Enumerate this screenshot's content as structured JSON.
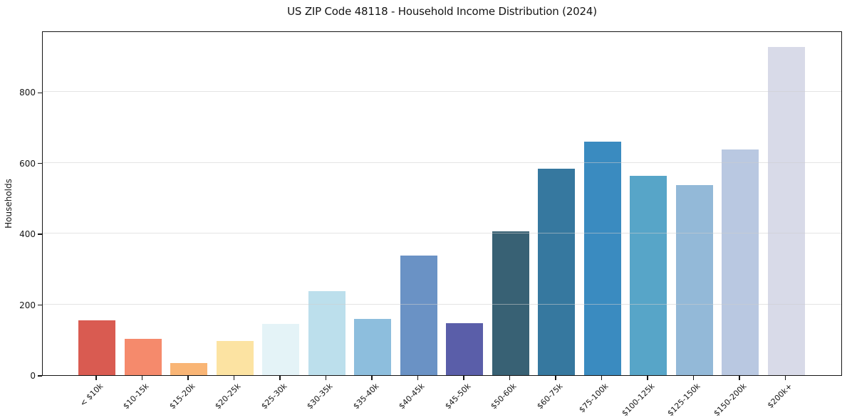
{
  "chart_data": {
    "type": "bar",
    "title": "US ZIP Code 48118 - Household Income Distribution (2024)",
    "xlabel": "",
    "ylabel": "Households",
    "categories": [
      "< $10k",
      "$10-15k",
      "$15-20k",
      "$20-25k",
      "$25-30k",
      "$30-35k",
      "$35-40k",
      "$40-45k",
      "$45-50k",
      "$50-60k",
      "$60-75k",
      "$75-100k",
      "$100-125k",
      "$125-150k",
      "$150-200k",
      "$200k+"
    ],
    "values": [
      155,
      102,
      34,
      97,
      145,
      237,
      159,
      337,
      147,
      406,
      583,
      660,
      562,
      536,
      638,
      927
    ],
    "bar_colors": [
      "#d95b51",
      "#f58a6c",
      "#f9b575",
      "#fce3a2",
      "#e4f3f7",
      "#bcdfec",
      "#8dbedd",
      "#6a92c5",
      "#5a5ea9",
      "#386174",
      "#36789f",
      "#3a8bc0",
      "#57a5c8",
      "#93b9d8",
      "#b9c8e1",
      "#d8dae8"
    ],
    "yticks": [
      0,
      200,
      400,
      600,
      800
    ],
    "ylim": [
      0,
      973
    ],
    "grid": "horizontal",
    "grid_color": "#cdcdcd",
    "axis_color": "#151515",
    "background_color": "#ffffff",
    "legend": "none",
    "x_tick_label_rotation_deg": 45
  }
}
